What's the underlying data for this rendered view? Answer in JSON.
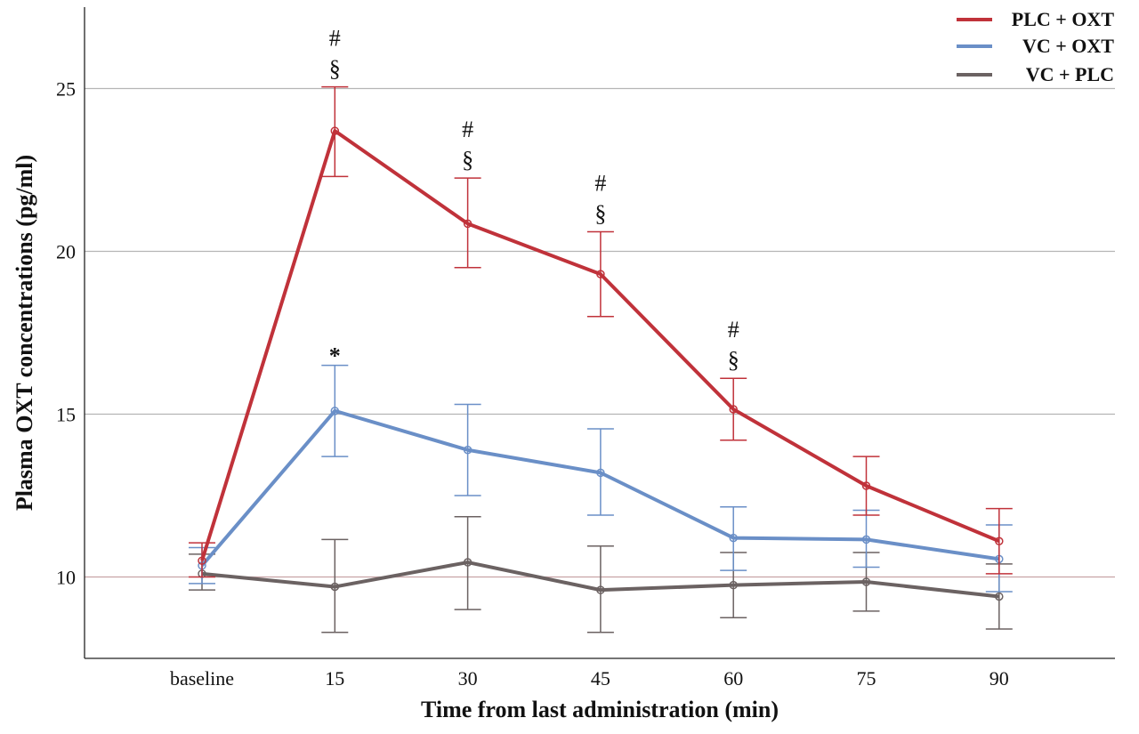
{
  "chart_data": {
    "type": "line",
    "title": "",
    "xlabel": "Time from last administration (min)",
    "ylabel": "Plasma OXT concentrations (pg/ml)",
    "categories": [
      "baseline",
      "15",
      "30",
      "45",
      "60",
      "75",
      "90"
    ],
    "ylim": [
      7.5,
      27.5
    ],
    "yticks": [
      10,
      15,
      20,
      25
    ],
    "grid": "horizontal",
    "reference_line": 10,
    "legend_position": "top-right",
    "series": [
      {
        "name": "PLC + OXT",
        "color": "#c0323a",
        "values": [
          10.5,
          23.7,
          20.85,
          19.3,
          15.15,
          12.8,
          11.1
        ],
        "err_low": [
          10.0,
          22.3,
          19.5,
          18.0,
          14.2,
          11.9,
          10.1
        ],
        "err_high": [
          11.05,
          25.05,
          22.25,
          20.6,
          16.1,
          13.7,
          12.1
        ]
      },
      {
        "name": "VC + OXT",
        "color": "#6a8fc7",
        "values": [
          10.35,
          15.1,
          13.9,
          13.2,
          11.2,
          11.15,
          10.55
        ],
        "err_low": [
          9.8,
          13.7,
          12.5,
          11.9,
          10.2,
          10.3,
          9.55
        ],
        "err_high": [
          10.9,
          16.5,
          15.3,
          14.55,
          12.15,
          12.05,
          11.6
        ]
      },
      {
        "name": "VC + PLC",
        "color": "#6b6262",
        "values": [
          10.1,
          9.7,
          10.45,
          9.6,
          9.75,
          9.85,
          9.4
        ],
        "err_low": [
          9.6,
          8.3,
          9.0,
          8.3,
          8.75,
          8.95,
          8.4
        ],
        "err_high": [
          10.7,
          11.15,
          11.85,
          10.95,
          10.75,
          10.75,
          10.4
        ]
      }
    ],
    "annotations": [
      {
        "category": "15",
        "lines": [
          "#",
          "§"
        ]
      },
      {
        "category": "30",
        "lines": [
          "#",
          "§"
        ]
      },
      {
        "category": "45",
        "lines": [
          "#",
          "§"
        ]
      },
      {
        "category": "60",
        "lines": [
          "#",
          "§"
        ]
      },
      {
        "category": "15",
        "lines": [
          "*"
        ]
      }
    ]
  }
}
